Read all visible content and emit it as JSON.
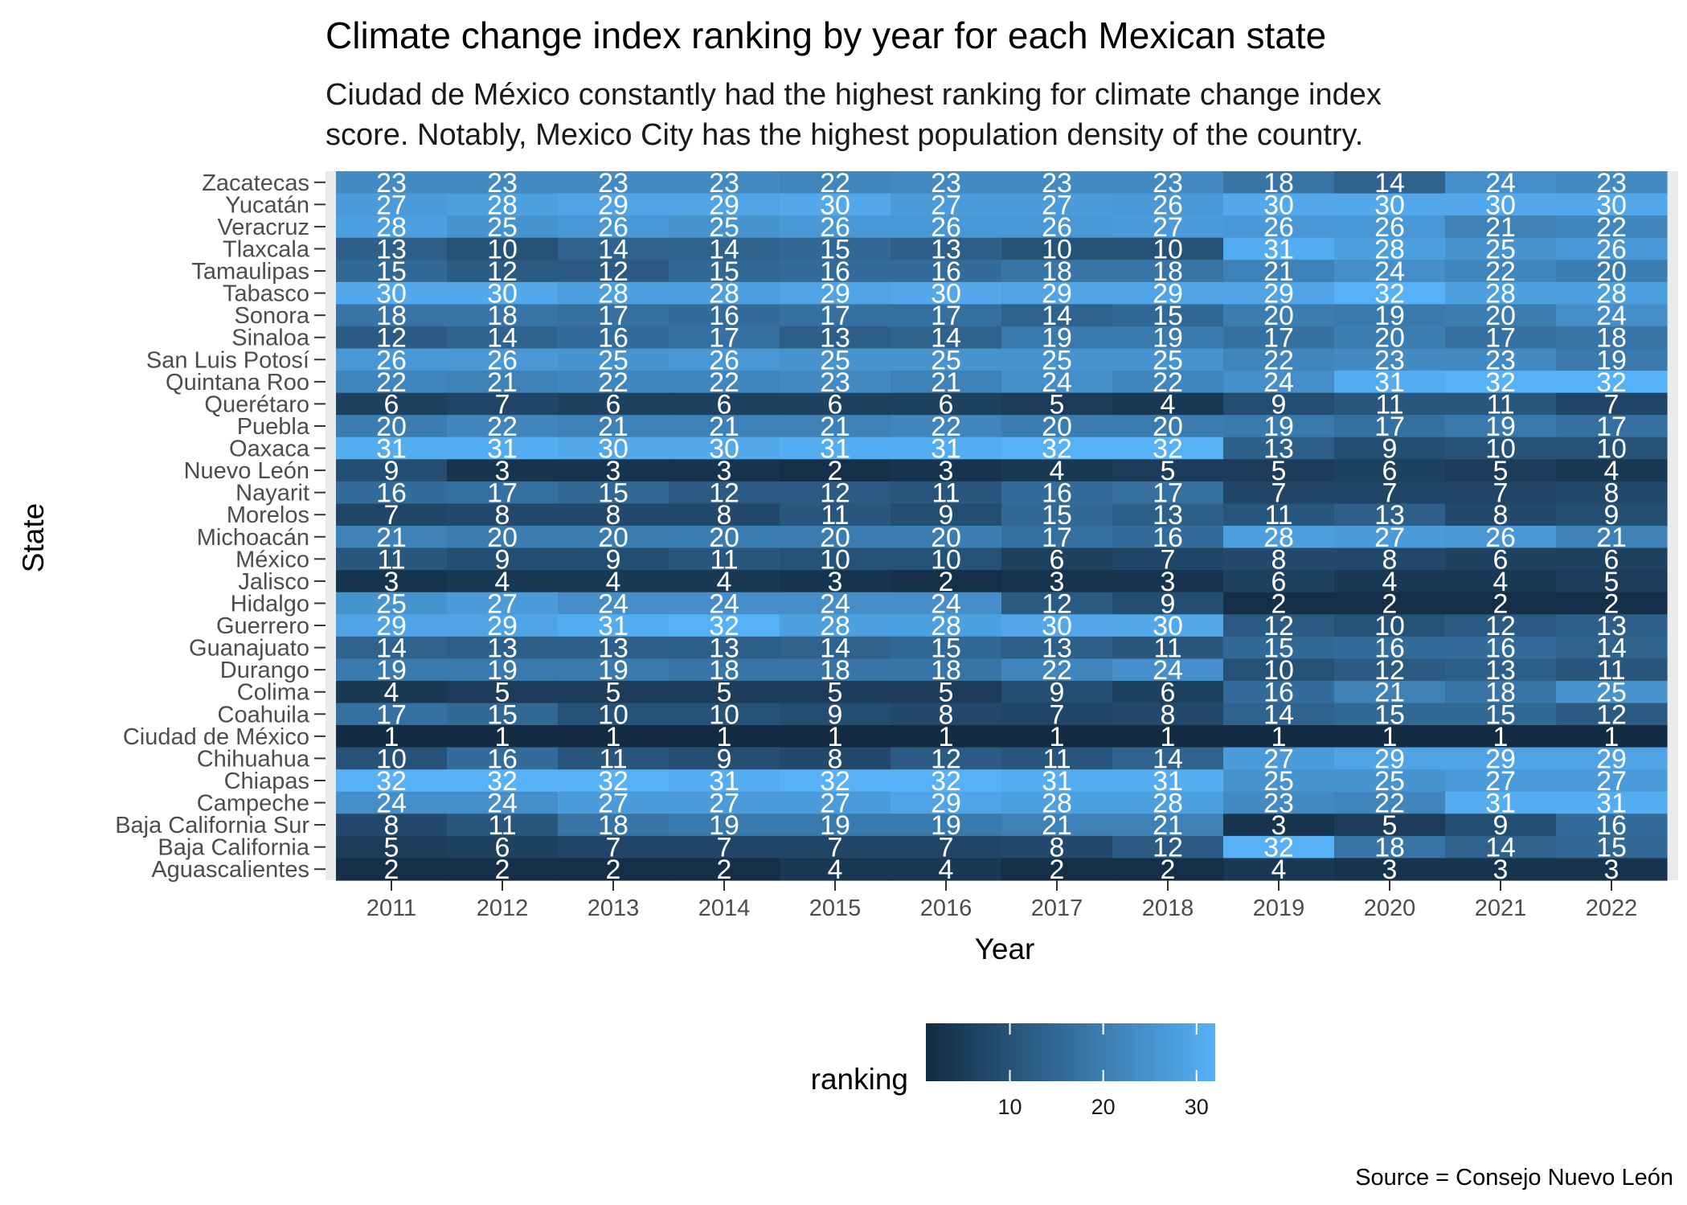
{
  "chart_data": {
    "type": "heatmap",
    "title": "Climate change index ranking by year for each Mexican state",
    "subtitle": [
      "Ciudad de México constantly had the highest ranking for climate change index",
      "score. Notably, Mexico City has the highest population density of the country."
    ],
    "xlabel": "Year",
    "ylabel": "State",
    "caption": "Source = Consejo Nuevo León",
    "legend": {
      "title": "ranking",
      "ticks": [
        10,
        20,
        30
      ],
      "placement": "bottom",
      "range": [
        1,
        32
      ]
    },
    "colors": {
      "low": "#132B43",
      "high": "#56B1F7",
      "panel": "#EBEBEB"
    },
    "x": [
      "2011",
      "2012",
      "2013",
      "2014",
      "2015",
      "2016",
      "2017",
      "2018",
      "2019",
      "2020",
      "2021",
      "2022"
    ],
    "rows": [
      {
        "state": "Zacatecas",
        "values": [
          23,
          23,
          23,
          23,
          22,
          23,
          23,
          23,
          18,
          14,
          24,
          23
        ]
      },
      {
        "state": "Yucatán",
        "values": [
          27,
          28,
          29,
          29,
          30,
          27,
          27,
          26,
          30,
          30,
          30,
          30
        ]
      },
      {
        "state": "Veracruz",
        "values": [
          28,
          25,
          26,
          25,
          26,
          26,
          26,
          27,
          26,
          26,
          21,
          22
        ]
      },
      {
        "state": "Tlaxcala",
        "values": [
          13,
          10,
          14,
          14,
          15,
          13,
          10,
          10,
          31,
          28,
          25,
          26
        ]
      },
      {
        "state": "Tamaulipas",
        "values": [
          15,
          12,
          12,
          15,
          16,
          16,
          18,
          18,
          21,
          24,
          22,
          20
        ]
      },
      {
        "state": "Tabasco",
        "values": [
          30,
          30,
          28,
          28,
          29,
          30,
          29,
          29,
          29,
          32,
          28,
          28
        ]
      },
      {
        "state": "Sonora",
        "values": [
          18,
          18,
          17,
          16,
          17,
          17,
          14,
          15,
          20,
          19,
          20,
          24
        ]
      },
      {
        "state": "Sinaloa",
        "values": [
          12,
          14,
          16,
          17,
          13,
          14,
          19,
          19,
          17,
          20,
          17,
          18
        ]
      },
      {
        "state": "San Luis Potosí",
        "values": [
          26,
          26,
          25,
          26,
          25,
          25,
          25,
          25,
          22,
          23,
          23,
          19
        ]
      },
      {
        "state": "Quintana Roo",
        "values": [
          22,
          21,
          22,
          22,
          23,
          21,
          24,
          22,
          24,
          31,
          32,
          32
        ]
      },
      {
        "state": "Querétaro",
        "values": [
          6,
          7,
          6,
          6,
          6,
          6,
          5,
          4,
          9,
          11,
          11,
          7
        ]
      },
      {
        "state": "Puebla",
        "values": [
          20,
          22,
          21,
          21,
          21,
          22,
          20,
          20,
          19,
          17,
          19,
          17
        ]
      },
      {
        "state": "Oaxaca",
        "values": [
          31,
          31,
          30,
          30,
          31,
          31,
          32,
          32,
          13,
          9,
          10,
          10
        ]
      },
      {
        "state": "Nuevo León",
        "values": [
          9,
          3,
          3,
          3,
          2,
          3,
          4,
          5,
          5,
          6,
          5,
          4
        ]
      },
      {
        "state": "Nayarit",
        "values": [
          16,
          17,
          15,
          12,
          12,
          11,
          16,
          17,
          7,
          7,
          7,
          8
        ]
      },
      {
        "state": "Morelos",
        "values": [
          7,
          8,
          8,
          8,
          11,
          9,
          15,
          13,
          11,
          13,
          8,
          9
        ]
      },
      {
        "state": "Michoacán",
        "values": [
          21,
          20,
          20,
          20,
          20,
          20,
          17,
          16,
          28,
          27,
          26,
          21
        ]
      },
      {
        "state": "México",
        "values": [
          11,
          9,
          9,
          11,
          10,
          10,
          6,
          7,
          8,
          8,
          6,
          6
        ]
      },
      {
        "state": "Jalisco",
        "values": [
          3,
          4,
          4,
          4,
          3,
          2,
          3,
          3,
          6,
          4,
          4,
          5
        ]
      },
      {
        "state": "Hidalgo",
        "values": [
          25,
          27,
          24,
          24,
          24,
          24,
          12,
          9,
          2,
          2,
          2,
          2
        ]
      },
      {
        "state": "Guerrero",
        "values": [
          29,
          29,
          31,
          32,
          28,
          28,
          30,
          30,
          12,
          10,
          12,
          13
        ]
      },
      {
        "state": "Guanajuato",
        "values": [
          14,
          13,
          13,
          13,
          14,
          15,
          13,
          11,
          15,
          16,
          16,
          14
        ]
      },
      {
        "state": "Durango",
        "values": [
          19,
          19,
          19,
          18,
          18,
          18,
          22,
          24,
          10,
          12,
          13,
          11
        ]
      },
      {
        "state": "Colima",
        "values": [
          4,
          5,
          5,
          5,
          5,
          5,
          9,
          6,
          16,
          21,
          18,
          25
        ]
      },
      {
        "state": "Coahuila",
        "values": [
          17,
          15,
          10,
          10,
          9,
          8,
          7,
          8,
          14,
          15,
          15,
          12
        ]
      },
      {
        "state": "Ciudad de México",
        "values": [
          1,
          1,
          1,
          1,
          1,
          1,
          1,
          1,
          1,
          1,
          1,
          1
        ]
      },
      {
        "state": "Chihuahua",
        "values": [
          10,
          16,
          11,
          9,
          8,
          12,
          11,
          14,
          27,
          29,
          29,
          29
        ]
      },
      {
        "state": "Chiapas",
        "values": [
          32,
          32,
          32,
          31,
          32,
          32,
          31,
          31,
          25,
          25,
          27,
          27
        ]
      },
      {
        "state": "Campeche",
        "values": [
          24,
          24,
          27,
          27,
          27,
          29,
          28,
          28,
          23,
          22,
          31,
          31
        ]
      },
      {
        "state": "Baja California Sur",
        "values": [
          8,
          11,
          18,
          19,
          19,
          19,
          21,
          21,
          3,
          5,
          9,
          16
        ]
      },
      {
        "state": "Baja California",
        "values": [
          5,
          6,
          7,
          7,
          7,
          7,
          8,
          12,
          32,
          18,
          14,
          15
        ]
      },
      {
        "state": "Aguascalientes",
        "values": [
          2,
          2,
          2,
          2,
          4,
          4,
          2,
          2,
          4,
          3,
          3,
          3
        ]
      }
    ]
  }
}
